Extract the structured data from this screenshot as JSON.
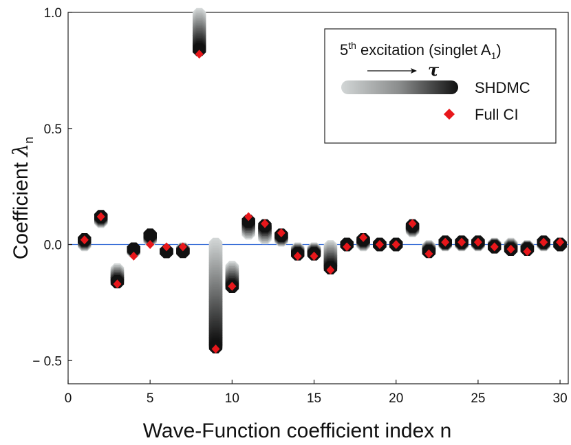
{
  "chart_data": {
    "type": "scatter",
    "xlabel": "Wave-Function coefficient index n",
    "ylabel_main": "Coefficient ",
    "ylabel_symbol": "λ",
    "ylabel_sub": "n",
    "xlim": [
      0,
      30.5
    ],
    "ylim": [
      -0.6,
      1.0
    ],
    "x_ticks": [
      0,
      5,
      10,
      15,
      20,
      25,
      30
    ],
    "y_ticks": [
      1.0,
      0.5,
      0.0,
      -0.5
    ],
    "x_tick_labels": [
      "0",
      "5",
      "10",
      "15",
      "20",
      "25",
      "30"
    ],
    "y_tick_labels": [
      "1.0",
      "0.5",
      "0.0",
      "− 0.5"
    ],
    "zero_line_color": "#3a6fd8",
    "legend": {
      "title_prefix": "5",
      "title_sup": "th",
      "title_main": " excitation (singlet A",
      "title_sub": "1",
      "title_end": ")",
      "tau_symbol": "τ",
      "series_shdmc": "SHDMC",
      "series_fullci": "Full CI",
      "placement": "top-right"
    },
    "colors": {
      "shdmc_start": "#d2d6d6",
      "shdmc_end": "#111111",
      "fullci": "#e8171b"
    },
    "series": [
      {
        "name": "SHDMC",
        "description": "evolution with tau from start value to converged value",
        "x": [
          1,
          2,
          3,
          4,
          5,
          6,
          7,
          8,
          9,
          10,
          11,
          12,
          13,
          14,
          15,
          16,
          17,
          18,
          19,
          20,
          21,
          22,
          23,
          24,
          25,
          26,
          27,
          28,
          29,
          30
        ],
        "start": [
          0.0,
          0.1,
          -0.11,
          -0.03,
          0.02,
          -0.03,
          -0.02,
          0.99,
          0.0,
          -0.1,
          0.05,
          0.03,
          0.02,
          -0.02,
          -0.02,
          -0.01,
          0.0,
          0.0,
          0.0,
          0.0,
          0.06,
          -0.01,
          0.0,
          0.0,
          0.0,
          0.0,
          0.0,
          -0.01,
          0.0,
          0.0
        ],
        "end": [
          0.02,
          0.12,
          -0.16,
          -0.02,
          0.04,
          -0.03,
          -0.03,
          0.84,
          -0.44,
          -0.18,
          0.1,
          0.08,
          0.04,
          -0.04,
          -0.04,
          -0.1,
          0.0,
          0.02,
          0.0,
          0.0,
          0.08,
          -0.03,
          0.01,
          0.01,
          0.01,
          -0.01,
          -0.02,
          -0.02,
          0.01,
          0.0
        ]
      },
      {
        "name": "Full CI",
        "x": [
          1,
          2,
          3,
          4,
          5,
          6,
          7,
          8,
          9,
          10,
          11,
          12,
          13,
          14,
          15,
          16,
          17,
          18,
          19,
          20,
          21,
          22,
          23,
          24,
          25,
          26,
          27,
          28,
          29,
          30
        ],
        "values": [
          0.02,
          0.12,
          -0.17,
          -0.05,
          0.0,
          -0.01,
          -0.01,
          0.82,
          -0.45,
          -0.18,
          0.12,
          0.09,
          0.05,
          -0.05,
          -0.05,
          -0.11,
          -0.01,
          0.03,
          0.0,
          0.0,
          0.09,
          -0.04,
          0.01,
          0.01,
          0.01,
          -0.01,
          -0.02,
          -0.03,
          0.01,
          0.01
        ]
      }
    ]
  }
}
